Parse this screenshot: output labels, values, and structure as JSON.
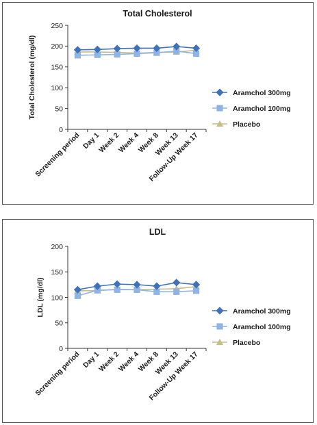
{
  "chart_data": [
    {
      "type": "line",
      "title": "Total Cholesterol",
      "ylabel": "Total Cholesterol (mg/dl)",
      "xlabel": "",
      "ylim": [
        0,
        250
      ],
      "yticks": [
        0,
        50,
        100,
        150,
        200,
        250
      ],
      "grid": false,
      "legend_position": "right",
      "categories": [
        "Screening period",
        "Day 1",
        "Week 2",
        "Week 4",
        "Week 8",
        "Week 13",
        "Follow-Up Week 17"
      ],
      "series": [
        {
          "name": "Aramchol 300mg",
          "color": "#3f72b8",
          "marker": "diamond",
          "values": [
            191,
            192,
            194,
            195,
            195,
            199,
            195
          ]
        },
        {
          "name": "Aramchol 100mg",
          "color": "#8fb4e3",
          "marker": "square",
          "values": [
            178,
            179,
            180,
            182,
            184,
            188,
            182
          ]
        },
        {
          "name": "Placebo",
          "color": "#c4be8c",
          "marker": "triangle",
          "values": [
            186,
            186,
            185,
            183,
            185,
            186,
            190
          ]
        }
      ]
    },
    {
      "type": "line",
      "title": "LDL",
      "ylabel": "LDL (mg/dl)",
      "xlabel": "",
      "ylim": [
        0,
        200
      ],
      "yticks": [
        0,
        50,
        100,
        150,
        200
      ],
      "grid": false,
      "legend_position": "right",
      "categories": [
        "Screening period",
        "Day 1",
        "Week 2",
        "Week 4",
        "Week 8",
        "Week 13",
        "Follow-Up Week 17"
      ],
      "series": [
        {
          "name": "Aramchol 300mg",
          "color": "#3f72b8",
          "marker": "diamond",
          "values": [
            115,
            122,
            126,
            125,
            122,
            129,
            125
          ]
        },
        {
          "name": "Aramchol 100mg",
          "color": "#8fb4e3",
          "marker": "square",
          "values": [
            103,
            114,
            115,
            115,
            111,
            111,
            113
          ]
        },
        {
          "name": "Placebo",
          "color": "#c4be8c",
          "marker": "triangle",
          "values": [
            113,
            113,
            116,
            115,
            116,
            117,
            121
          ]
        }
      ]
    }
  ]
}
